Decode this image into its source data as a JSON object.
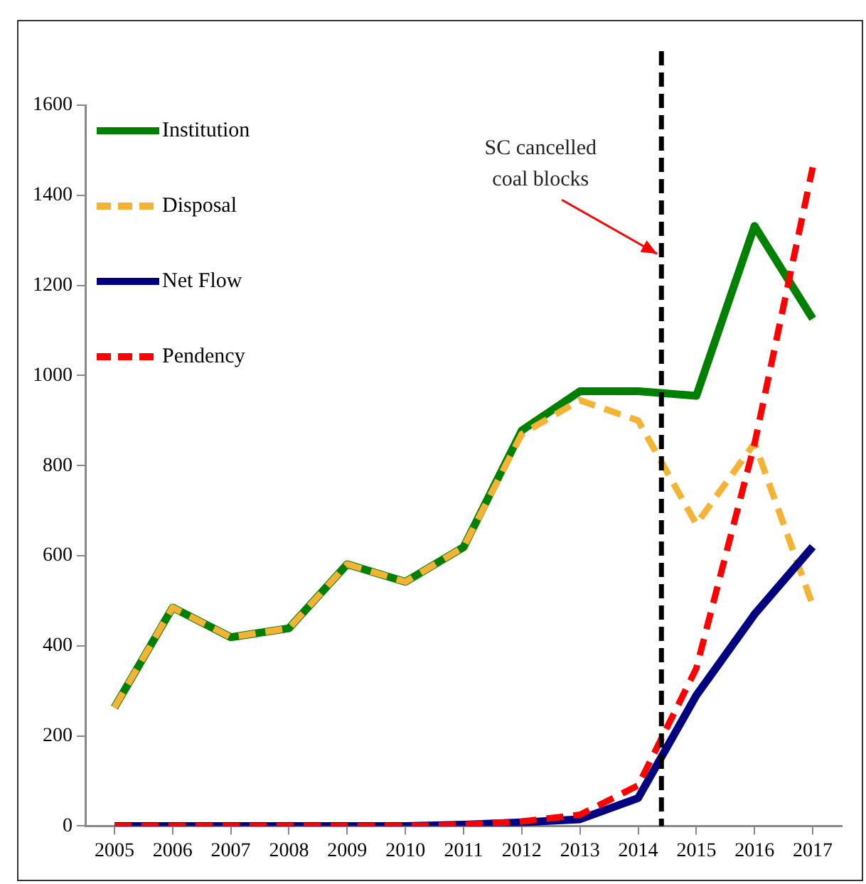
{
  "chart_data": {
    "type": "line",
    "x": [
      2005,
      2006,
      2007,
      2008,
      2009,
      2010,
      2011,
      2012,
      2013,
      2014,
      2015,
      2016,
      2017
    ],
    "xlim": [
      2004.5,
      2017.5
    ],
    "xticks": [
      2005,
      2006,
      2007,
      2008,
      2009,
      2010,
      2011,
      2012,
      2013,
      2014,
      2015,
      2016,
      2017
    ],
    "ylim": [
      0,
      1600
    ],
    "yticks": [
      0,
      200,
      400,
      600,
      800,
      1000,
      1200,
      1400,
      1600
    ],
    "series": [
      {
        "name": "Institution",
        "color": "#008000",
        "line_style": "solid",
        "values": [
          263,
          485,
          419,
          439,
          581,
          542,
          619,
          878,
          965,
          965,
          955,
          1332,
          1126
        ]
      },
      {
        "name": "Disposal",
        "color": "#f5b335",
        "line_style": "dashed",
        "values": [
          263,
          485,
          419,
          439,
          581,
          542,
          619,
          870,
          945,
          900,
          670,
          850,
          490
        ]
      },
      {
        "name": "Net Flow",
        "color": "#000080",
        "line_style": "solid",
        "values": [
          0,
          0,
          0,
          0,
          0,
          0,
          3,
          8,
          15,
          62,
          290,
          470,
          620
        ]
      },
      {
        "name": "Pendency",
        "color": "#ff0000",
        "line_style": "dashed",
        "values": [
          0,
          0,
          0,
          0,
          0,
          0,
          3,
          10,
          25,
          90,
          350,
          848,
          1462
        ]
      }
    ],
    "ref_lines": [
      {
        "axis": "x",
        "value": 2014.4,
        "color": "#000000",
        "line_style": "dashed"
      }
    ],
    "annotations": [
      {
        "text": "SC cancelled\ncoal blocks",
        "x": 2014.4,
        "y": 1270
      }
    ],
    "legend": "top left",
    "grid": false,
    "marker": "none"
  }
}
